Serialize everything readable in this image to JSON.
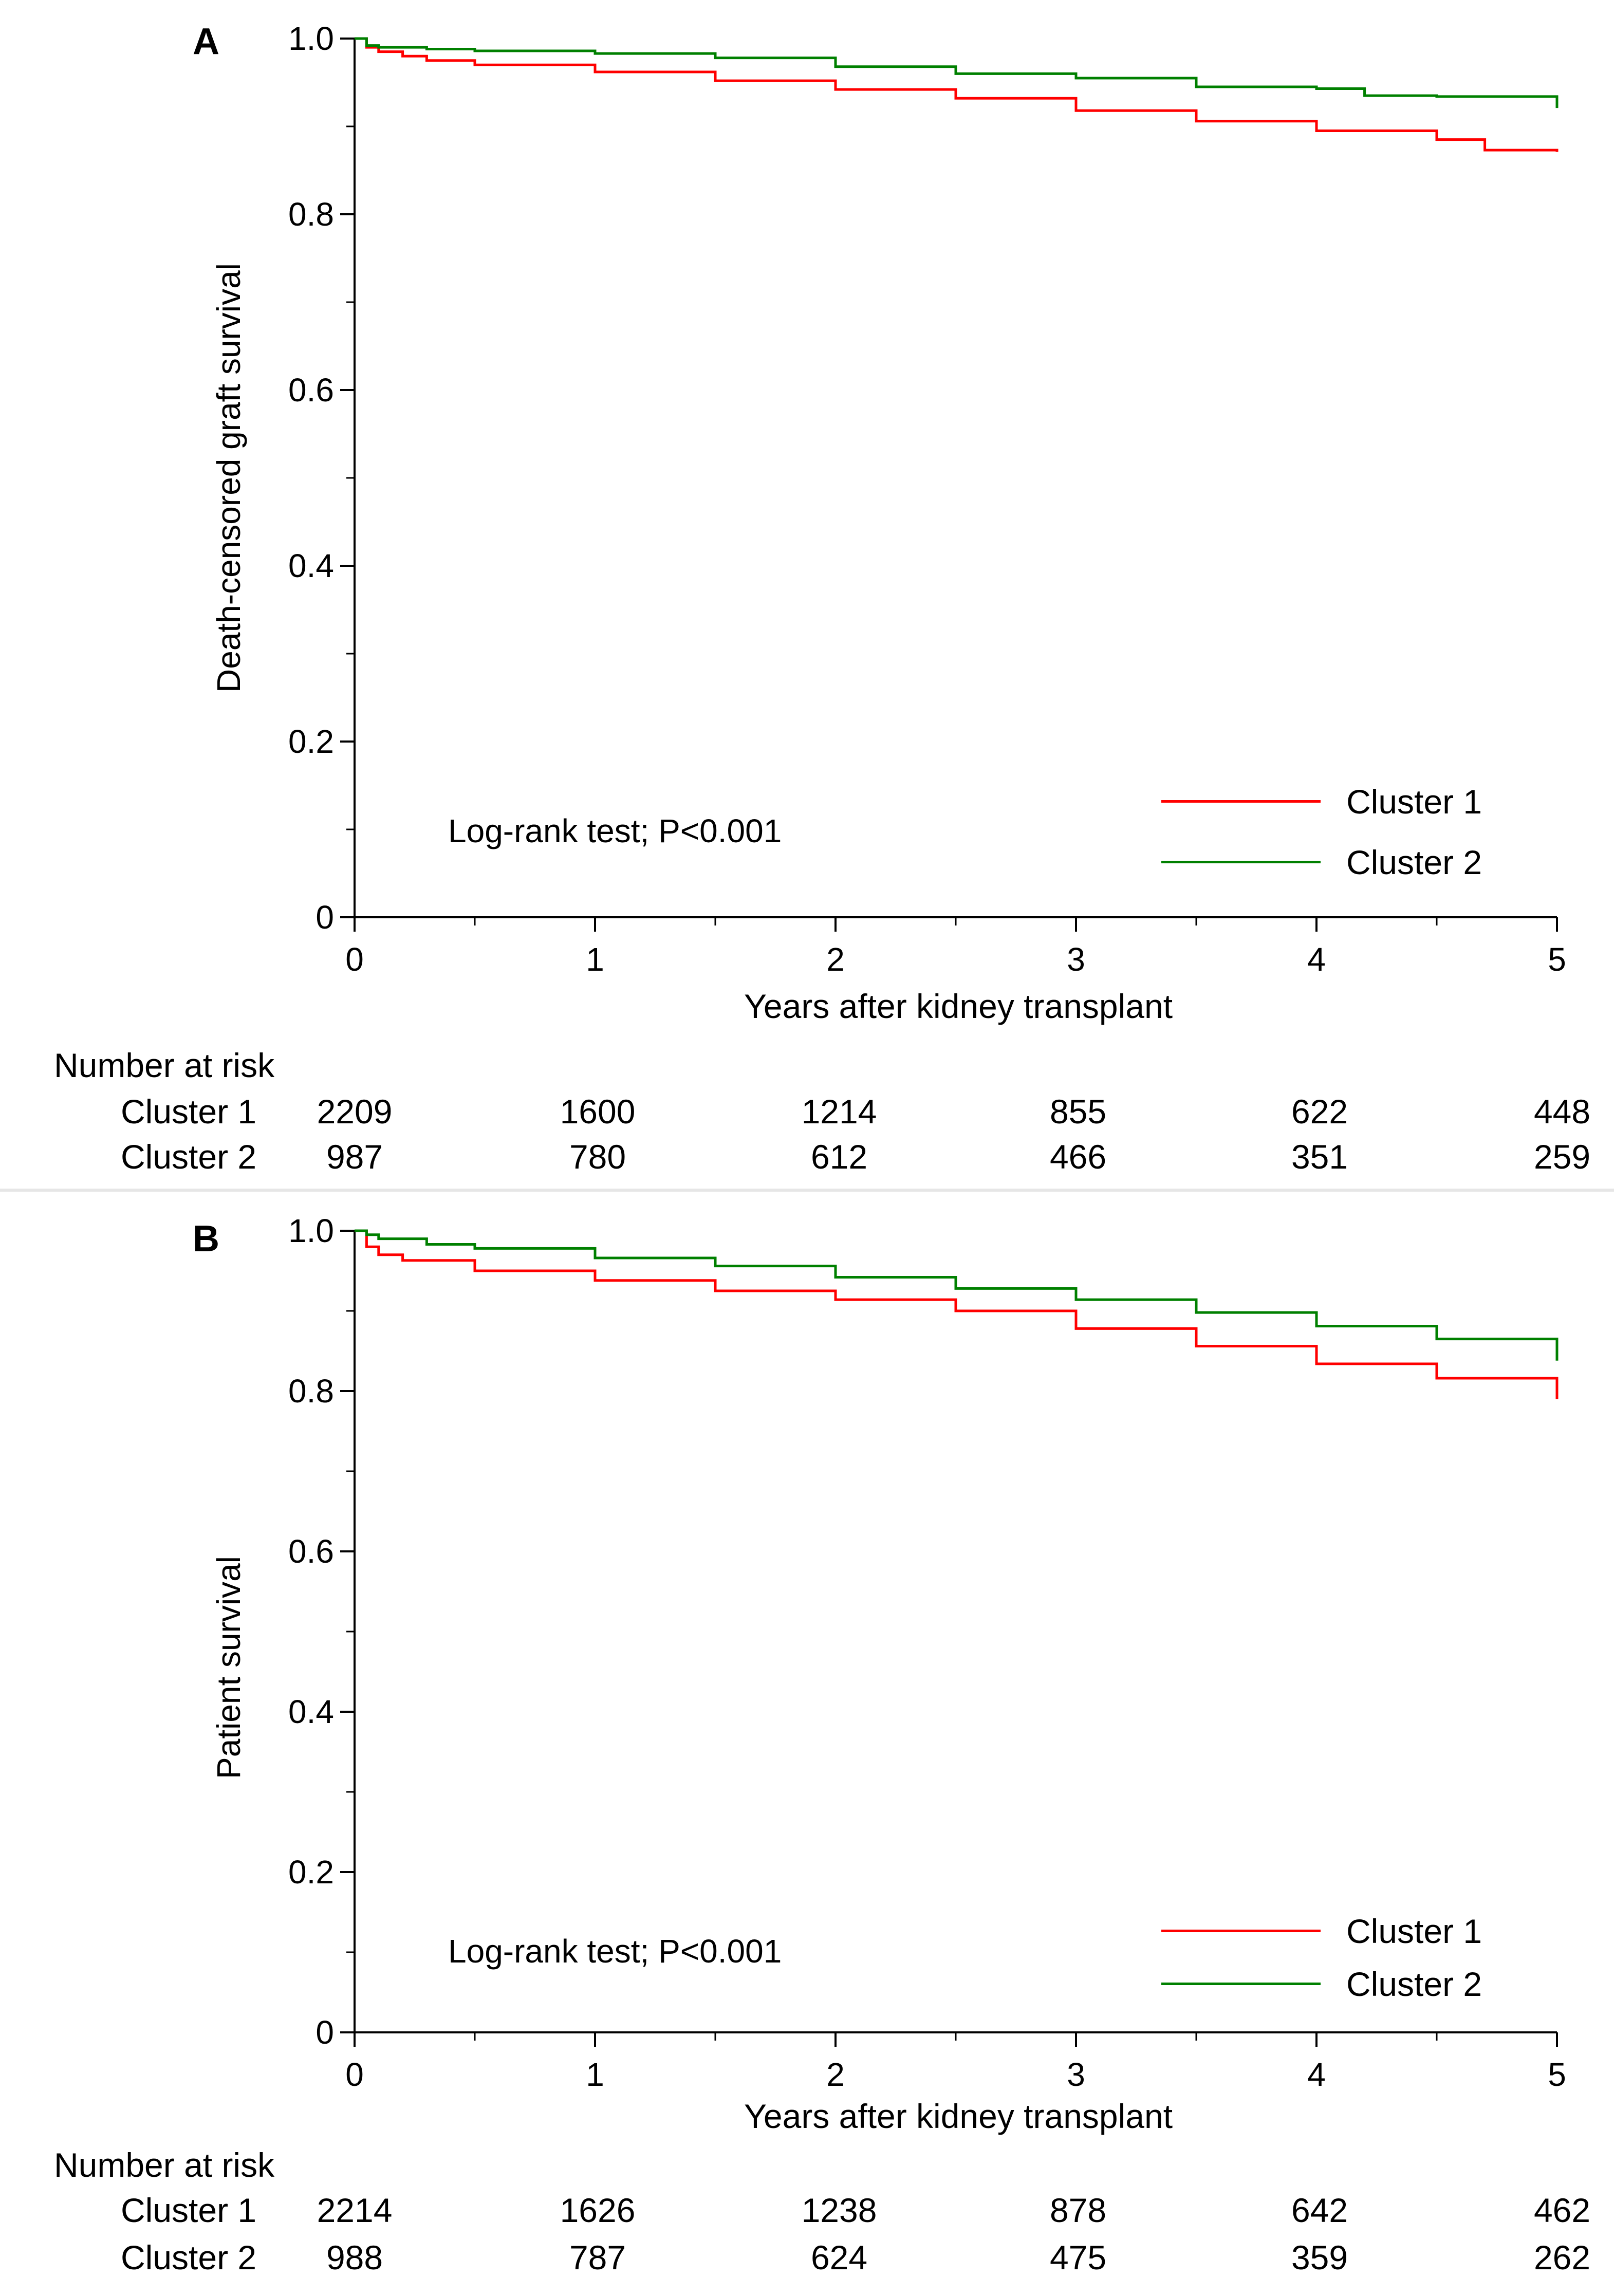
{
  "chart_data": [
    {
      "type": "line",
      "panel_label": "A",
      "title": "",
      "xlabel": "Years after kidney transplant",
      "ylabel": "Death-censored graft survival",
      "xlim": [
        0,
        5
      ],
      "ylim": [
        0,
        1.0
      ],
      "x_ticks": [
        "0",
        "1",
        "2",
        "3",
        "4",
        "5"
      ],
      "y_ticks": [
        "0",
        "0.2",
        "0.4",
        "0.6",
        "0.8",
        "1.0"
      ],
      "annotation": "Log-rank test; P<0.001",
      "legend_position": "bottom-right",
      "series": [
        {
          "name": "Cluster 1",
          "color": "#ff0000",
          "x": [
            0,
            0.05,
            0.1,
            0.2,
            0.3,
            0.5,
            1.0,
            1.5,
            2.0,
            2.5,
            3.0,
            3.5,
            4.0,
            4.5,
            4.7,
            5.0
          ],
          "y": [
            1.0,
            0.99,
            0.985,
            0.98,
            0.975,
            0.97,
            0.962,
            0.952,
            0.942,
            0.932,
            0.918,
            0.906,
            0.895,
            0.885,
            0.873,
            0.871
          ]
        },
        {
          "name": "Cluster 2",
          "color": "#008000",
          "x": [
            0,
            0.05,
            0.1,
            0.3,
            0.5,
            1.0,
            1.5,
            2.0,
            2.5,
            3.0,
            3.5,
            4.0,
            4.2,
            4.5,
            5.0
          ],
          "y": [
            1.0,
            0.992,
            0.99,
            0.988,
            0.986,
            0.983,
            0.978,
            0.968,
            0.96,
            0.955,
            0.945,
            0.943,
            0.935,
            0.934,
            0.921
          ]
        }
      ],
      "risk_table": {
        "title": "Number at risk",
        "rows": [
          {
            "label": "Cluster 1",
            "values": [
              "2209",
              "1600",
              "1214",
              "855",
              "622",
              "448"
            ]
          },
          {
            "label": "Cluster 2",
            "values": [
              "987",
              "780",
              "612",
              "466",
              "351",
              "259"
            ]
          }
        ]
      }
    },
    {
      "type": "line",
      "panel_label": "B",
      "title": "",
      "xlabel": "Years after kidney transplant",
      "ylabel": "Patient survival",
      "xlim": [
        0,
        5
      ],
      "ylim": [
        0,
        1.0
      ],
      "x_ticks": [
        "0",
        "1",
        "2",
        "3",
        "4",
        "5"
      ],
      "y_ticks": [
        "0",
        "0.2",
        "0.4",
        "0.6",
        "0.8",
        "1.0"
      ],
      "annotation": "Log-rank test; P<0.001",
      "legend_position": "bottom-right",
      "series": [
        {
          "name": "Cluster 1",
          "color": "#ff0000",
          "x": [
            0,
            0.05,
            0.1,
            0.2,
            0.5,
            1.0,
            1.5,
            2.0,
            2.5,
            3.0,
            3.5,
            4.0,
            4.5,
            5.0
          ],
          "y": [
            1.0,
            0.98,
            0.97,
            0.963,
            0.95,
            0.938,
            0.925,
            0.914,
            0.9,
            0.878,
            0.856,
            0.834,
            0.816,
            0.79
          ]
        },
        {
          "name": "Cluster 2",
          "color": "#008000",
          "x": [
            0,
            0.05,
            0.1,
            0.3,
            0.5,
            1.0,
            1.5,
            2.0,
            2.5,
            3.0,
            3.5,
            4.0,
            4.5,
            5.0
          ],
          "y": [
            1.0,
            0.995,
            0.99,
            0.983,
            0.978,
            0.966,
            0.956,
            0.942,
            0.928,
            0.914,
            0.898,
            0.881,
            0.865,
            0.838
          ]
        }
      ],
      "risk_table": {
        "title": "Number at risk",
        "rows": [
          {
            "label": "Cluster 1",
            "values": [
              "2214",
              "1626",
              "1238",
              "878",
              "642",
              "462"
            ]
          },
          {
            "label": "Cluster 2",
            "values": [
              "988",
              "787",
              "624",
              "475",
              "359",
              "262"
            ]
          }
        ]
      }
    }
  ]
}
